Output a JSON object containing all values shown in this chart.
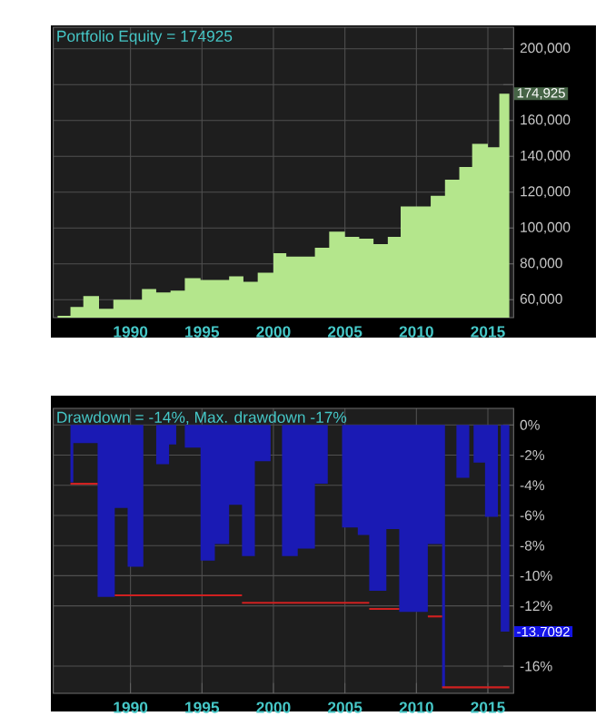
{
  "chart_data": [
    {
      "type": "area",
      "title": "Portfolio Equity = 174925",
      "grid": true,
      "xlim": [
        1984.6,
        2016.8
      ],
      "xticks": [
        1990,
        1995,
        2000,
        2005,
        2010,
        2015
      ],
      "ylim": [
        50000,
        212000
      ],
      "yticks": [
        {
          "value": 60000,
          "label": "60,000"
        },
        {
          "value": 80000,
          "label": "80,000"
        },
        {
          "value": 100000,
          "label": "100,000"
        },
        {
          "value": 120000,
          "label": "120,000"
        },
        {
          "value": 140000,
          "label": "140,000"
        },
        {
          "value": 160000,
          "label": "160,000"
        },
        {
          "value": 180000,
          "label": null
        },
        {
          "value": 200000,
          "label": "200,000"
        }
      ],
      "series": [
        {
          "color": "#b4e68c",
          "x": [
            1984.9,
            1985.8,
            1986.7,
            1987.8,
            1988.8,
            1989.8,
            1990.8,
            1991.8,
            1992.8,
            1993.8,
            1994.9,
            1995.9,
            1996.9,
            1997.9,
            1998.9,
            2000.0,
            2000.9,
            2002.0,
            2002.9,
            2003.9,
            2005.0,
            2006.0,
            2007.0,
            2008.0,
            2008.9,
            2010.0,
            2011.0,
            2012.0,
            2013.0,
            2013.9,
            2015.0,
            2015.8,
            2016.5
          ],
          "values": [
            51000,
            56000,
            62000,
            55000,
            60000,
            60000,
            66000,
            64000,
            65000,
            72000,
            71000,
            71000,
            73000,
            70000,
            75000,
            86000,
            84000,
            84000,
            89000,
            98000,
            95000,
            94000,
            91000,
            95000,
            112000,
            112000,
            118000,
            127000,
            134000,
            147000,
            145000,
            174925,
            174925
          ]
        }
      ],
      "annotations": [
        {
          "text": "174,925",
          "x": 2016.8,
          "y": 174925
        }
      ]
    },
    {
      "type": "area",
      "title": "Drawdown = -14%, Max. drawdown -17%",
      "grid": true,
      "xlim": [
        1984.6,
        2016.8
      ],
      "xticks": [
        1990,
        1995,
        2000,
        2005,
        2010,
        2015
      ],
      "ylim": [
        -17.8,
        1.1
      ],
      "yticks": [
        {
          "value": 0,
          "label": "0%"
        },
        {
          "value": -2,
          "label": "-2%"
        },
        {
          "value": -4,
          "label": "-4%"
        },
        {
          "value": -6,
          "label": "-6%"
        },
        {
          "value": -8,
          "label": "-8%"
        },
        {
          "value": -10,
          "label": "-10%"
        },
        {
          "value": -12,
          "label": "-12%"
        },
        {
          "value": -16,
          "label": "-16%"
        }
      ],
      "series": [
        {
          "color": "#1a1ab4",
          "x": [
            1984.9,
            1985.8,
            1986.0,
            1987.7,
            1988.9,
            1989.8,
            1990.9,
            1991.8,
            1992.7,
            1993.2,
            1993.8,
            1994.9,
            1995.9,
            1996.9,
            1997.8,
            1998.7,
            1999.8,
            2000.6,
            2001.7,
            2002.9,
            2003.8,
            2004.8,
            2005.9,
            2006.7,
            2007.9,
            2008.8,
            2010.8,
            2011.8,
            2012.0,
            2012.8,
            2013.7,
            2014.0,
            2014.8,
            2015.7,
            2015.9,
            2016.5
          ],
          "values": [
            0,
            -3.8,
            -1.2,
            -11.4,
            -5.5,
            -9.4,
            0,
            -2.6,
            -1.3,
            0,
            -1.5,
            -9.0,
            -7.9,
            -5.3,
            -8.7,
            -2.4,
            0,
            -8.7,
            -8.2,
            -3.9,
            0,
            -6.8,
            -7.3,
            -11.0,
            -6.9,
            -12.4,
            -7.9,
            -17.4,
            0,
            -3.5,
            0,
            -2.5,
            -6.1,
            0,
            -13.7092,
            -13.7092
          ]
        },
        {
          "type": "line",
          "color": "#d02020",
          "x": [
            1985.8,
            1987.7
          ],
          "values": [
            -3.9,
            -3.9
          ]
        },
        {
          "type": "line",
          "color": "#d02020",
          "x": [
            1988.9,
            1997.8
          ],
          "values": [
            -11.3,
            -11.3
          ]
        },
        {
          "type": "line",
          "color": "#d02020",
          "x": [
            1997.8,
            2006.7
          ],
          "values": [
            -11.8,
            -11.8
          ]
        },
        {
          "type": "line",
          "color": "#d02020",
          "x": [
            2006.7,
            2008.8
          ],
          "values": [
            -12.2,
            -12.2
          ]
        },
        {
          "type": "line",
          "color": "#d02020",
          "x": [
            2010.8,
            2011.8
          ],
          "values": [
            -12.7,
            -12.7
          ]
        },
        {
          "type": "line",
          "color": "#d02020",
          "x": [
            2011.8,
            2016.5
          ],
          "values": [
            -17.4,
            -17.4
          ]
        }
      ],
      "annotations": [
        {
          "text": "-13.7092",
          "x": 2016.8,
          "y": -13.7092
        }
      ]
    }
  ]
}
